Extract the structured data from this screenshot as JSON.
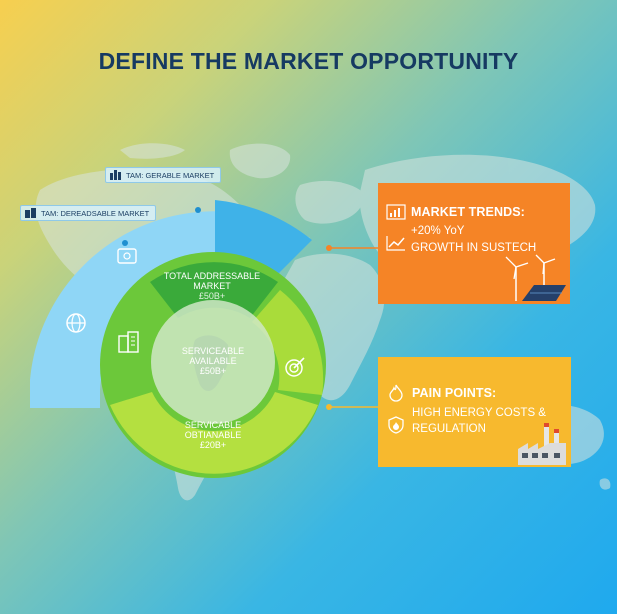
{
  "title": "DEFINE THE MARKET OPPORTUNITY",
  "tam_labels": {
    "top": "TAM: GERABLE MARKET",
    "left": "TAM: DEREADSABLE MARKET"
  },
  "rings": {
    "tam": {
      "line1": "TOTAL ADDRESSABLE",
      "line2": "MARKET",
      "value": "£50B+"
    },
    "sam": {
      "line1": "SERVICEABLE",
      "line2": "AVAILABLE",
      "value": "£50B+"
    },
    "som": {
      "line1": "SERVICABLE",
      "line2": "OBTIANABLE",
      "value": "£20B+"
    }
  },
  "cards": {
    "trends": {
      "heading": "MARKET TRENDS:",
      "line1": "+20% YoY",
      "line2": "GROWTH IN SUSTECH"
    },
    "pain": {
      "heading": "PAIN POINTS:",
      "line1": "HIGH ENERGY COSTS &",
      "line2": "REGULATION"
    }
  },
  "colors": {
    "title": "#163a62",
    "outer_arc": "#8fd6f6",
    "outer_arc_accent": "#3fb2e8",
    "tam_segment": "#3aaa3a",
    "green_ring": "#6cc83a",
    "lime_ring": "#b4e040",
    "orange": "#f58426",
    "yellow": "#f7b92e"
  },
  "icons": [
    "building-icon",
    "dollar-box-icon",
    "globe-icon",
    "target-icon",
    "bar-chart-icon",
    "line-chart-icon",
    "wind-turbine-icon",
    "solar-panel-icon",
    "fire-icon",
    "shield-flame-icon",
    "factory-icon"
  ]
}
